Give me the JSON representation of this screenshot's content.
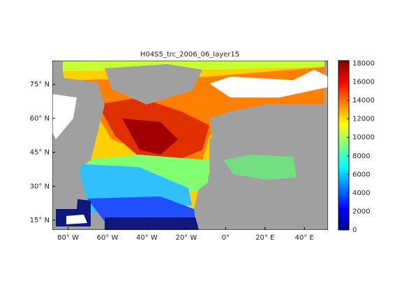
{
  "map": {
    "title": "H04S5_trc_2006_06_layer15",
    "lon_range": [
      -88,
      52
    ],
    "lat_range": [
      10.7,
      85.5
    ],
    "lon_ticks": [
      {
        "value": -80,
        "label": "80° W"
      },
      {
        "value": -60,
        "label": "60° W"
      },
      {
        "value": -40,
        "label": "40° W"
      },
      {
        "value": -20,
        "label": "20° W"
      },
      {
        "value": 0,
        "label": "0°"
      },
      {
        "value": 20,
        "label": "20° E"
      },
      {
        "value": 40,
        "label": "40° E"
      }
    ],
    "lat_ticks": [
      {
        "value": 15,
        "label": "15° N"
      },
      {
        "value": 30,
        "label": "30° N"
      },
      {
        "value": 45,
        "label": "45° N"
      },
      {
        "value": 60,
        "label": "60° N"
      },
      {
        "value": 75,
        "label": "75° N"
      }
    ],
    "colorbar": {
      "range": [
        0,
        18300
      ],
      "ticks": [
        0,
        2000,
        4000,
        6000,
        8000,
        10000,
        12000,
        14000,
        16000,
        18000
      ]
    }
  }
}
